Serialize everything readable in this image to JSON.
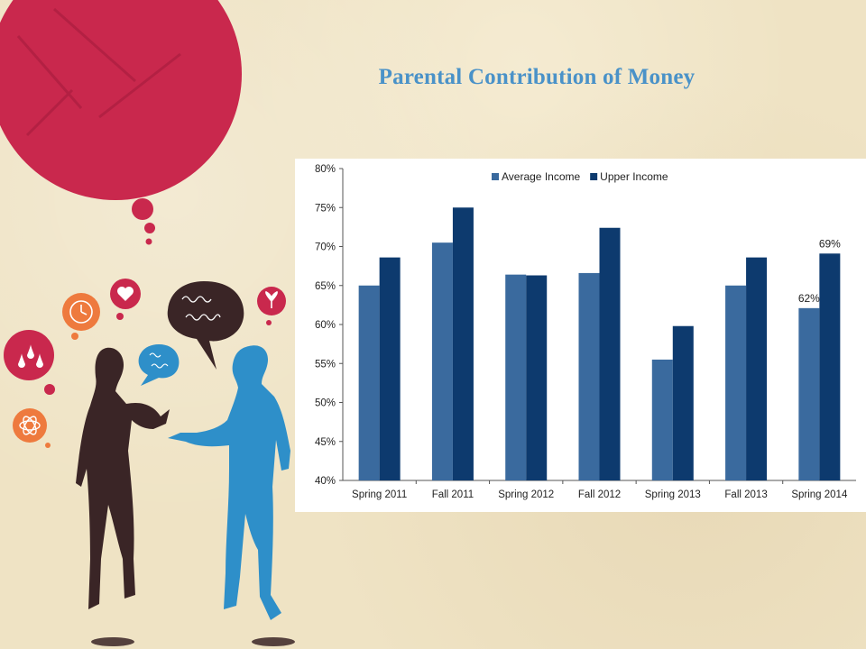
{
  "slide": {
    "title": "Parental Contribution of Money"
  },
  "chart_data": {
    "type": "bar",
    "categories": [
      "Spring 2011",
      "Fall 2011",
      "Spring 2012",
      "Fall 2012",
      "Spring 2013",
      "Fall 2013",
      "Spring 2014"
    ],
    "series": [
      {
        "name": "Average Income",
        "color": "#3a6a9e",
        "values": [
          65.0,
          70.5,
          66.4,
          66.6,
          55.5,
          65.0,
          62.1
        ]
      },
      {
        "name": "Upper Income",
        "color": "#0d3a6e",
        "values": [
          68.6,
          75.0,
          66.3,
          72.4,
          59.8,
          68.6,
          69.1
        ]
      }
    ],
    "data_labels": [
      {
        "series": "Average Income",
        "category": "Spring 2014",
        "text": "62%"
      },
      {
        "series": "Upper Income",
        "category": "Spring 2014",
        "text": "69%"
      }
    ],
    "y_ticks": [
      "40%",
      "45%",
      "50%",
      "55%",
      "60%",
      "65%",
      "70%",
      "75%",
      "80%"
    ],
    "ylim": [
      40,
      80
    ],
    "legend_position": "top-center",
    "grid": false
  },
  "illustration": {
    "icons": [
      "heart-icon",
      "clock-icon",
      "droplets-icon",
      "sprout-icon",
      "atom-icon",
      "scribble-speech-bubble-icon"
    ]
  }
}
